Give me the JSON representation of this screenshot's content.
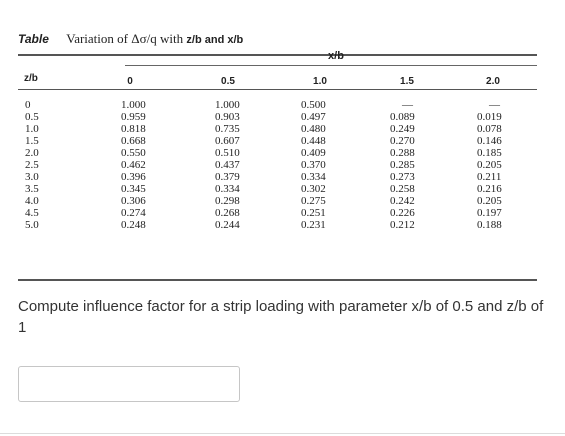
{
  "caption": {
    "label": "Table",
    "text": "Variation of Δσ/q with",
    "suffix": "z/b and x/b"
  },
  "table": {
    "group_header": "x/b",
    "row_header": "z/b",
    "col_headers": [
      "0",
      "0.5",
      "1.0",
      "1.5",
      "2.0"
    ],
    "z_b": [
      "0",
      "0.5",
      "1.0",
      "1.5",
      "2.0",
      "2.5",
      "3.0",
      "3.5",
      "4.0",
      "4.5",
      "5.0"
    ],
    "col_0": [
      "1.000",
      "0.959",
      "0.818",
      "0.668",
      "0.550",
      "0.462",
      "0.396",
      "0.345",
      "0.306",
      "0.274",
      "0.248"
    ],
    "col_05": [
      "1.000",
      "0.903",
      "0.735",
      "0.607",
      "0.510",
      "0.437",
      "0.379",
      "0.334",
      "0.298",
      "0.268",
      "0.244"
    ],
    "col_10": [
      "0.500",
      "0.497",
      "0.480",
      "0.448",
      "0.409",
      "0.370",
      "0.334",
      "0.302",
      "0.275",
      "0.251",
      "0.231"
    ],
    "col_15": [
      "—",
      "0.089",
      "0.249",
      "0.270",
      "0.288",
      "0.285",
      "0.273",
      "0.258",
      "0.242",
      "0.226",
      "0.212"
    ],
    "col_20": [
      "—",
      "0.019",
      "0.078",
      "0.146",
      "0.185",
      "0.205",
      "0.211",
      "0.216",
      "0.205",
      "0.197",
      "0.188"
    ]
  },
  "question": "Compute influence factor for a strip loading with parameter x/b of 0.5 and z/b of 1",
  "answer": {
    "value": ""
  }
}
